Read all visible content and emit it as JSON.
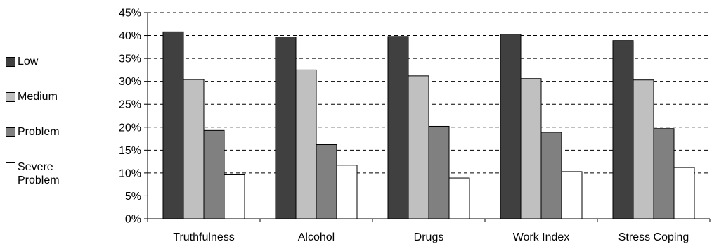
{
  "chart_data": {
    "type": "bar",
    "categories": [
      "Truthfulness",
      "Alcohol",
      "Drugs",
      "Work Index",
      "Stress Coping"
    ],
    "series": [
      {
        "name": "Low",
        "color": "#404040",
        "values": [
          40.8,
          39.7,
          39.8,
          40.3,
          38.9
        ]
      },
      {
        "name": "Medium",
        "color": "#c0c0c0",
        "values": [
          30.4,
          32.5,
          31.2,
          30.6,
          30.3
        ]
      },
      {
        "name": "Problem",
        "color": "#808080",
        "values": [
          19.3,
          16.2,
          20.2,
          18.9,
          19.7
        ]
      },
      {
        "name": "Severe\nProblem",
        "color": "#ffffff",
        "values": [
          9.6,
          11.7,
          8.9,
          10.3,
          11.2
        ]
      }
    ],
    "y_ticks": [
      "0%",
      "5%",
      "10%",
      "15%",
      "20%",
      "25%",
      "30%",
      "35%",
      "40%",
      "45%"
    ],
    "ylim": [
      0,
      45
    ],
    "y_tick_step": 5,
    "grid": "horizontal dashed",
    "legend_position": "left",
    "title": "",
    "xlabel": "",
    "ylabel": ""
  }
}
